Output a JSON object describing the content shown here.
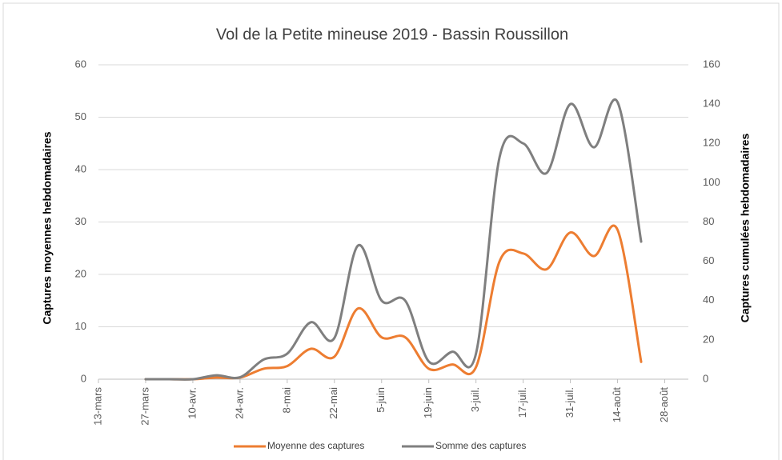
{
  "chart_data": {
    "type": "line",
    "title": "Vol de la Petite mineuse 2019 - Bassin Roussillon",
    "y_label": "Captures moyennes hebdomadaires",
    "y2_label": "Captures cumulées hebdomadaires",
    "categories": [
      "13-mars",
      null,
      "27-mars",
      null,
      "10-avr.",
      null,
      "24-avr.",
      null,
      "8-mai",
      null,
      "22-mai",
      null,
      "5-juin",
      null,
      "19-juin",
      null,
      "3-juil.",
      null,
      "17-juil.",
      null,
      "31-juil.",
      null,
      "14-août",
      null,
      "28-août",
      null
    ],
    "series": [
      {
        "name": "Moyenne des captures",
        "color": "#ed7d31",
        "values": [
          null,
          null,
          0,
          0,
          0,
          0.3,
          0.3,
          2,
          2.5,
          5.8,
          4.3,
          13.5,
          8,
          8,
          2,
          2.8,
          2.3,
          22.5,
          24,
          21,
          28,
          23.5,
          28.5,
          3.3,
          null,
          null
        ]
      },
      {
        "name": "Somme des captures",
        "color": "#7f7f7f",
        "axis": "y2",
        "values": [
          null,
          null,
          0,
          0,
          0,
          2,
          1,
          10,
          13,
          29,
          21,
          68,
          40,
          40,
          9,
          14,
          13,
          113,
          120,
          105,
          140,
          118,
          141,
          70,
          null,
          null
        ]
      }
    ],
    "ylim": [
      0,
      60
    ],
    "yticks": [
      0,
      10,
      20,
      30,
      40,
      50,
      60
    ],
    "y2lim": [
      0,
      160
    ],
    "y2ticks": [
      0,
      20,
      40,
      60,
      80,
      100,
      120,
      140,
      160
    ],
    "grid": true,
    "legend": "bottom"
  }
}
